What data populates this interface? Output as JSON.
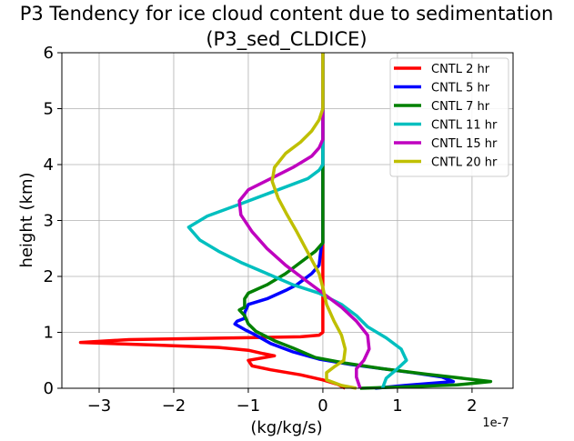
{
  "chart_data": {
    "type": "line",
    "title": "P3 Tendency for ice cloud content due to sedimentation",
    "subtitle": "(P3_sed_CLDICE)",
    "xlabel": "(kg/kg/s)",
    "ylabel": "height (km)",
    "x_offset_label": "1e-7",
    "xlim": [
      -3.5,
      2.55
    ],
    "ylim": [
      0,
      6
    ],
    "xticks": [
      -3,
      -2,
      -1,
      0,
      1,
      2
    ],
    "xtick_labels": [
      "−3",
      "−2",
      "−1",
      "0",
      "1",
      "2"
    ],
    "yticks": [
      0,
      1,
      2,
      3,
      4,
      5,
      6
    ],
    "ytick_labels": [
      "0",
      "1",
      "2",
      "3",
      "4",
      "5",
      "6"
    ],
    "grid": true,
    "legend_position": "top-right",
    "series": [
      {
        "name": "CNTL 2 hr",
        "color": "#ff0000",
        "points": [
          [
            0,
            6
          ],
          [
            0,
            3
          ],
          [
            0,
            1.0
          ],
          [
            -0.05,
            0.95
          ],
          [
            -0.3,
            0.92
          ],
          [
            -1.2,
            0.9
          ],
          [
            -2.6,
            0.87
          ],
          [
            -3.25,
            0.82
          ],
          [
            -2.2,
            0.77
          ],
          [
            -1.4,
            0.73
          ],
          [
            -1.0,
            0.68
          ],
          [
            -0.8,
            0.62
          ],
          [
            -0.65,
            0.58
          ],
          [
            -1.0,
            0.5
          ],
          [
            -0.95,
            0.4
          ],
          [
            -0.7,
            0.33
          ],
          [
            -0.3,
            0.24
          ],
          [
            0.0,
            0.15
          ],
          [
            0.2,
            0.07
          ],
          [
            0.3,
            0.0
          ]
        ]
      },
      {
        "name": "CNTL 5 hr",
        "color": "#0000ff",
        "points": [
          [
            0,
            6
          ],
          [
            0,
            2.6
          ],
          [
            -0.02,
            2.55
          ],
          [
            -0.05,
            2.2
          ],
          [
            -0.15,
            2.05
          ],
          [
            -0.35,
            1.85
          ],
          [
            -0.5,
            1.75
          ],
          [
            -0.75,
            1.6
          ],
          [
            -1.0,
            1.5
          ],
          [
            -1.05,
            1.35
          ],
          [
            -1.05,
            1.25
          ],
          [
            -1.15,
            1.2
          ],
          [
            -1.18,
            1.15
          ],
          [
            -1.05,
            1.05
          ],
          [
            -0.9,
            0.95
          ],
          [
            -0.7,
            0.8
          ],
          [
            -0.4,
            0.65
          ],
          [
            -0.05,
            0.52
          ],
          [
            0.4,
            0.42
          ],
          [
            0.8,
            0.35
          ],
          [
            1.2,
            0.28
          ],
          [
            1.6,
            0.2
          ],
          [
            1.75,
            0.12
          ],
          [
            1.1,
            0.05
          ],
          [
            0.7,
            0.0
          ]
        ]
      },
      {
        "name": "CNTL 7 hr",
        "color": "#008000",
        "points": [
          [
            0,
            6
          ],
          [
            0,
            2.6
          ],
          [
            -0.1,
            2.45
          ],
          [
            -0.3,
            2.25
          ],
          [
            -0.5,
            2.05
          ],
          [
            -0.75,
            1.85
          ],
          [
            -1.0,
            1.7
          ],
          [
            -1.05,
            1.6
          ],
          [
            -1.05,
            1.45
          ],
          [
            -1.12,
            1.4
          ],
          [
            -1.05,
            1.3
          ],
          [
            -1.0,
            1.15
          ],
          [
            -0.9,
            1.02
          ],
          [
            -0.65,
            0.85
          ],
          [
            -0.4,
            0.72
          ],
          [
            -0.1,
            0.55
          ],
          [
            0.3,
            0.45
          ],
          [
            0.8,
            0.35
          ],
          [
            1.4,
            0.25
          ],
          [
            2.0,
            0.16
          ],
          [
            2.25,
            0.12
          ],
          [
            1.8,
            0.06
          ],
          [
            1.0,
            0.02
          ],
          [
            0.5,
            0.0
          ]
        ]
      },
      {
        "name": "CNTL 11 hr",
        "color": "#00bfbf",
        "points": [
          [
            0,
            6
          ],
          [
            0,
            4.5
          ],
          [
            0,
            4.0
          ],
          [
            -0.05,
            3.9
          ],
          [
            -0.2,
            3.75
          ],
          [
            -0.6,
            3.55
          ],
          [
            -1.1,
            3.3
          ],
          [
            -1.55,
            3.08
          ],
          [
            -1.8,
            2.88
          ],
          [
            -1.65,
            2.65
          ],
          [
            -1.4,
            2.45
          ],
          [
            -1.1,
            2.25
          ],
          [
            -0.75,
            2.05
          ],
          [
            -0.4,
            1.85
          ],
          [
            -0.05,
            1.7
          ],
          [
            0.25,
            1.5
          ],
          [
            0.45,
            1.3
          ],
          [
            0.6,
            1.1
          ],
          [
            0.85,
            0.9
          ],
          [
            1.05,
            0.7
          ],
          [
            1.12,
            0.5
          ],
          [
            1.0,
            0.35
          ],
          [
            0.85,
            0.18
          ],
          [
            0.8,
            0.0
          ]
        ]
      },
      {
        "name": "CNTL 15 hr",
        "color": "#bf00bf",
        "points": [
          [
            0,
            6
          ],
          [
            0,
            4.45
          ],
          [
            -0.05,
            4.3
          ],
          [
            -0.15,
            4.15
          ],
          [
            -0.4,
            3.95
          ],
          [
            -0.7,
            3.75
          ],
          [
            -1.0,
            3.55
          ],
          [
            -1.12,
            3.35
          ],
          [
            -1.1,
            3.1
          ],
          [
            -0.95,
            2.8
          ],
          [
            -0.75,
            2.5
          ],
          [
            -0.5,
            2.2
          ],
          [
            -0.25,
            1.95
          ],
          [
            0.0,
            1.7
          ],
          [
            0.25,
            1.45
          ],
          [
            0.45,
            1.2
          ],
          [
            0.6,
            0.95
          ],
          [
            0.62,
            0.7
          ],
          [
            0.55,
            0.5
          ],
          [
            0.45,
            0.35
          ],
          [
            0.45,
            0.2
          ],
          [
            0.5,
            0.0
          ]
        ]
      },
      {
        "name": "CNTL 20 hr",
        "color": "#bfbf00",
        "points": [
          [
            0,
            6
          ],
          [
            0,
            5.0
          ],
          [
            -0.05,
            4.8
          ],
          [
            -0.15,
            4.6
          ],
          [
            -0.3,
            4.4
          ],
          [
            -0.5,
            4.2
          ],
          [
            -0.65,
            3.95
          ],
          [
            -0.68,
            3.7
          ],
          [
            -0.6,
            3.4
          ],
          [
            -0.48,
            3.1
          ],
          [
            -0.35,
            2.8
          ],
          [
            -0.25,
            2.55
          ],
          [
            -0.15,
            2.3
          ],
          [
            -0.05,
            2.05
          ],
          [
            0.0,
            1.8
          ],
          [
            0.05,
            1.5
          ],
          [
            0.15,
            1.2
          ],
          [
            0.25,
            0.95
          ],
          [
            0.3,
            0.7
          ],
          [
            0.28,
            0.5
          ],
          [
            0.15,
            0.38
          ],
          [
            0.05,
            0.28
          ],
          [
            0.05,
            0.15
          ],
          [
            0.25,
            0.05
          ],
          [
            0.45,
            0.0
          ]
        ]
      }
    ]
  }
}
